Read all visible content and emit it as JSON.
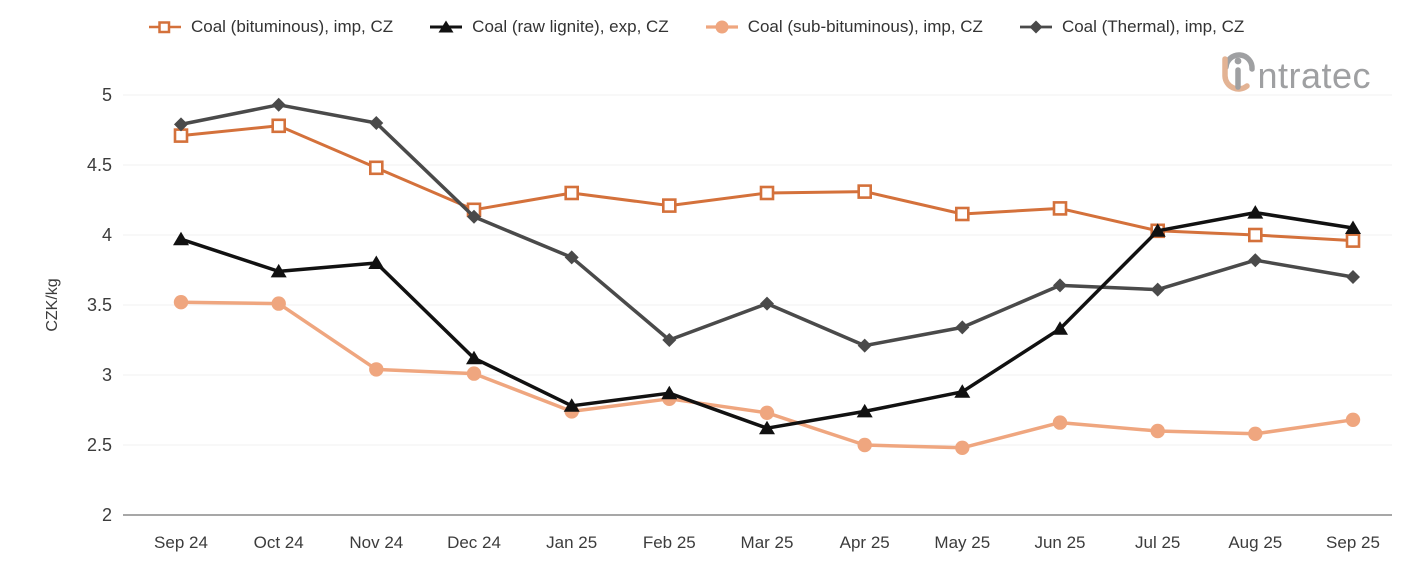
{
  "chart_data": {
    "type": "line",
    "title": "",
    "xlabel": "",
    "ylabel": "CZK/kg",
    "ylim": [
      2,
      5
    ],
    "yticks": [
      2,
      2.5,
      3,
      3.5,
      4,
      4.5,
      5
    ],
    "grid": "horizontal",
    "legend_position": "top",
    "categories": [
      "Sep 24",
      "Oct 24",
      "Nov 24",
      "Dec 24",
      "Jan 25",
      "Feb 25",
      "Mar 25",
      "Apr 25",
      "May 25",
      "Jun 25",
      "Jul 25",
      "Aug 25",
      "Sep 25"
    ],
    "series": [
      {
        "name": "Coal (bituminous), imp, CZ",
        "marker": "square-open",
        "color": "#D4713B",
        "values": [
          4.71,
          4.78,
          4.48,
          4.18,
          4.3,
          4.21,
          4.3,
          4.31,
          4.15,
          4.19,
          4.03,
          4.0,
          3.96
        ]
      },
      {
        "name": "Coal (raw lignite), exp, CZ",
        "marker": "triangle",
        "color": "#111111",
        "values": [
          3.97,
          3.74,
          3.8,
          3.12,
          2.78,
          2.87,
          2.62,
          2.74,
          2.88,
          3.33,
          4.03,
          4.16,
          4.05
        ]
      },
      {
        "name": "Coal (sub-bituminous), imp, CZ",
        "marker": "circle",
        "color": "#EFA67F",
        "values": [
          3.52,
          3.51,
          3.04,
          3.01,
          2.74,
          2.83,
          2.73,
          2.5,
          2.48,
          2.66,
          2.6,
          2.58,
          2.68
        ]
      },
      {
        "name": "Coal (Thermal), imp, CZ",
        "marker": "diamond",
        "color": "#4A4A4A",
        "values": [
          4.79,
          4.93,
          4.8,
          4.13,
          3.84,
          3.25,
          3.51,
          3.21,
          3.34,
          3.64,
          3.61,
          3.82,
          3.7
        ]
      }
    ],
    "draw_order": [
      0,
      2,
      3,
      1
    ]
  },
  "logo": {
    "full_name": "intratec",
    "text_after_mark": "ntratec"
  },
  "colors": {
    "grid_line": "#F0F0F0",
    "axis_line": "#8A8A8A",
    "tick_text": "#3C3C3C",
    "legend_text": "#333333",
    "logo_gray": "#9FA0A2",
    "logo_peach": "#E3B394"
  }
}
